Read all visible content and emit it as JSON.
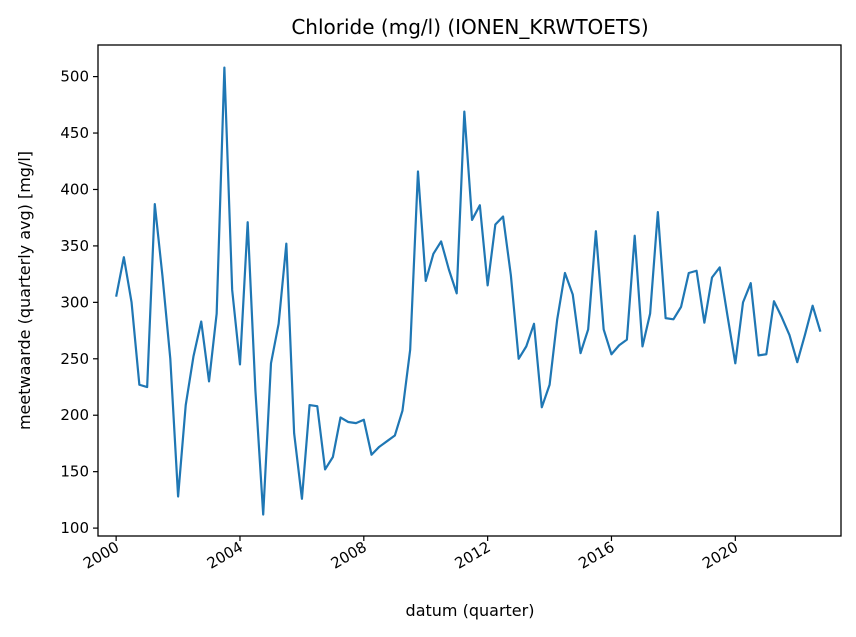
{
  "chart_data": {
    "type": "line",
    "title": "Chloride (mg/l) (IONEN_KRWTOETS)",
    "xlabel": "datum (quarter)",
    "ylabel": "meetwaarde (quarterly avg) [mg/l]",
    "x_type": "date",
    "xlim": [
      "1999-06-01",
      "2023-06-01"
    ],
    "ylim": [
      93,
      528
    ],
    "x_ticks": [
      {
        "date": "2000-01-01",
        "label": "2000"
      },
      {
        "date": "2004-01-01",
        "label": "2004"
      },
      {
        "date": "2008-01-01",
        "label": "2008"
      },
      {
        "date": "2012-01-01",
        "label": "2012"
      },
      {
        "date": "2016-01-01",
        "label": "2016"
      },
      {
        "date": "2020-01-01",
        "label": "2020"
      }
    ],
    "y_ticks": [
      100,
      150,
      200,
      250,
      300,
      350,
      400,
      450,
      500
    ],
    "grid": false,
    "legend": "none",
    "color": "#1f77b4",
    "x": [
      "2000-01-01",
      "2000-04-01",
      "2000-07-01",
      "2000-10-01",
      "2001-01-01",
      "2001-04-01",
      "2001-07-01",
      "2001-10-01",
      "2002-01-01",
      "2002-04-01",
      "2002-07-01",
      "2002-10-01",
      "2003-01-01",
      "2003-04-01",
      "2003-07-01",
      "2003-10-01",
      "2004-01-01",
      "2004-04-01",
      "2004-07-01",
      "2004-10-01",
      "2005-01-01",
      "2005-04-01",
      "2005-07-01",
      "2005-10-01",
      "2006-01-01",
      "2006-04-01",
      "2006-07-01",
      "2006-10-01",
      "2007-01-01",
      "2007-04-01",
      "2007-07-01",
      "2007-10-01",
      "2008-01-01",
      "2008-04-01",
      "2008-07-01",
      "2008-10-01",
      "2009-01-01",
      "2009-04-01",
      "2009-07-01",
      "2009-10-01",
      "2010-01-01",
      "2010-04-01",
      "2010-07-01",
      "2010-10-01",
      "2011-01-01",
      "2011-04-01",
      "2011-07-01",
      "2011-10-01",
      "2012-01-01",
      "2012-04-01",
      "2012-07-01",
      "2012-10-01",
      "2013-01-01",
      "2013-04-01",
      "2013-07-01",
      "2013-10-01",
      "2014-01-01",
      "2014-04-01",
      "2014-07-01",
      "2014-10-01",
      "2015-01-01",
      "2015-04-01",
      "2015-07-01",
      "2015-10-01",
      "2016-01-01",
      "2016-04-01",
      "2016-07-01",
      "2016-10-01",
      "2017-01-01",
      "2017-04-01",
      "2017-07-01",
      "2017-10-01",
      "2018-01-01",
      "2018-04-01",
      "2018-07-01",
      "2018-10-01",
      "2019-01-01",
      "2019-04-01",
      "2019-07-01",
      "2019-10-01",
      "2020-01-01",
      "2020-04-01",
      "2020-07-01",
      "2020-10-01",
      "2021-01-01",
      "2021-04-01",
      "2021-07-01",
      "2021-10-01",
      "2022-01-01",
      "2022-04-01",
      "2022-07-01",
      "2022-10-01"
    ],
    "values": [
      305,
      340,
      300,
      227,
      225,
      387,
      323,
      250,
      128,
      209,
      252,
      283,
      230,
      290,
      508,
      311,
      245,
      371,
      222,
      112,
      246,
      281,
      352,
      184,
      126,
      209,
      208,
      152,
      163,
      198,
      194,
      193,
      196,
      165,
      172,
      177,
      182,
      204,
      258,
      416,
      319,
      343,
      354,
      329,
      308,
      469,
      373,
      386,
      315,
      369,
      376,
      324,
      250,
      261,
      281,
      207,
      227,
      285,
      326,
      307,
      255,
      276,
      363,
      276,
      254,
      262,
      267,
      359,
      261,
      290,
      380,
      286,
      285,
      296,
      326,
      328,
      282,
      322,
      331,
      288,
      246,
      300,
      317,
      253,
      254,
      301,
      287,
      271,
      247,
      271,
      297,
      274
    ]
  }
}
